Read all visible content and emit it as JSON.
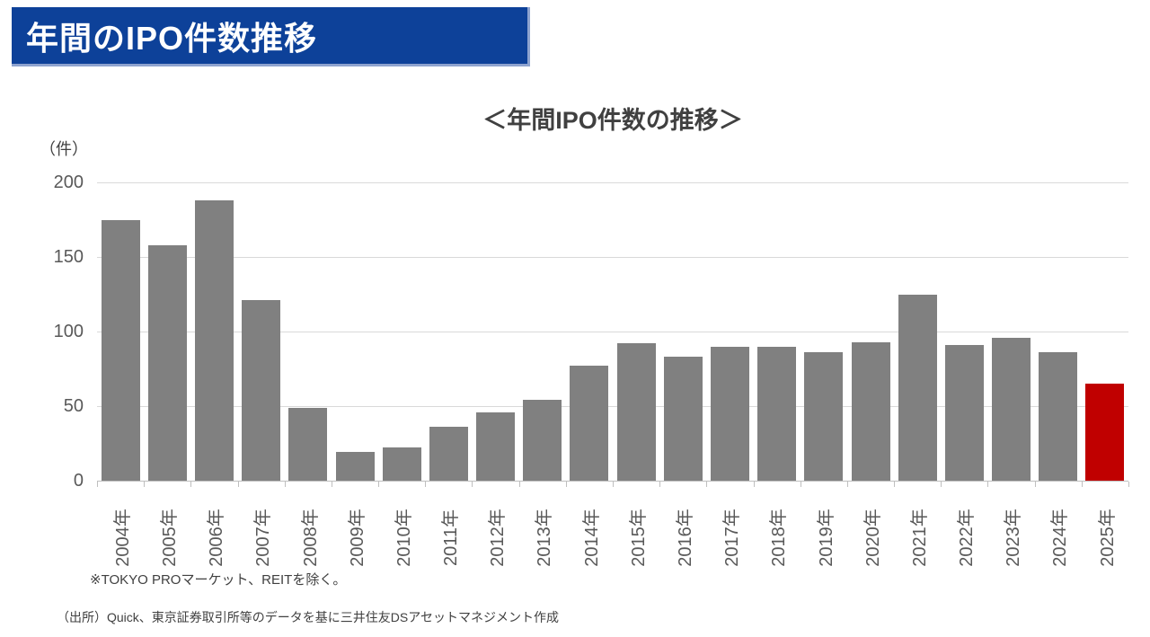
{
  "page": {
    "header": {
      "title": "年間のIPO件数推移"
    },
    "footnote": "※TOKYO PROマーケット、REITを除く。",
    "source": "（出所）Quick、東京証券取引所等のデータを基に三井住友DSアセットマネジメント作成"
  },
  "colors": {
    "banner_bg": "#0D4199",
    "banner_edge": "#8EA3CF",
    "bar_default": "#808080",
    "bar_highlight": "#C00000",
    "gridline": "#D9D9D9",
    "axis_line": "#BFBFBF",
    "axis_text": "#595959",
    "title_text": "#404040"
  },
  "chart_data": {
    "type": "bar",
    "title": "＜年間IPO件数の推移＞",
    "unit_label": "（件）",
    "categories": [
      "2004年",
      "2005年",
      "2006年",
      "2007年",
      "2008年",
      "2009年",
      "2010年",
      "2011年",
      "2012年",
      "2013年",
      "2014年",
      "2015年",
      "2016年",
      "2017年",
      "2018年",
      "2019年",
      "2020年",
      "2021年",
      "2022年",
      "2023年",
      "2024年",
      "2025年"
    ],
    "values": [
      175,
      158,
      188,
      121,
      49,
      19,
      22,
      36,
      46,
      54,
      77,
      92,
      83,
      90,
      90,
      86,
      93,
      125,
      91,
      96,
      86,
      65
    ],
    "highlight_index": 21,
    "xlabel": "",
    "ylabel": "（件）",
    "ylim": [
      0,
      200
    ],
    "yticks": [
      0,
      50,
      100,
      150,
      200
    ],
    "grid": true,
    "legend": "none"
  }
}
